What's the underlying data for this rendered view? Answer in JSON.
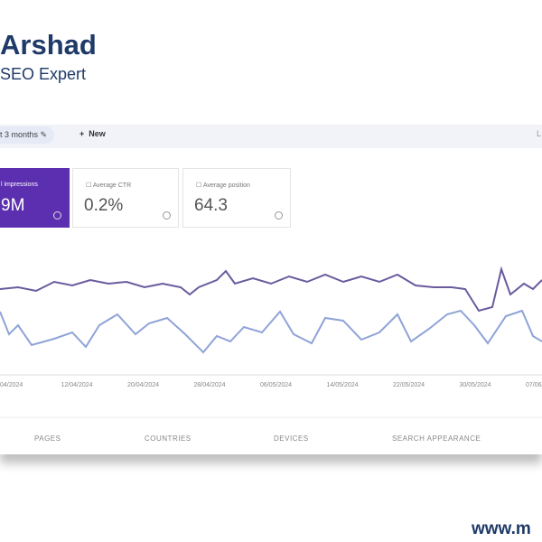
{
  "header": {
    "name": "Arshad",
    "subtitle": "SEO Expert"
  },
  "toolbar": {
    "date_range": "t 3 months",
    "new": "New",
    "edge": "L"
  },
  "metrics": [
    {
      "label": "l impressions",
      "value": "9M"
    },
    {
      "label": "Average CTR",
      "value": "0.2%"
    },
    {
      "label": "Average position",
      "value": "64.3"
    }
  ],
  "chart": {
    "x_labels": [
      "04/2024",
      "12/04/2024",
      "20/04/2024",
      "28/04/2024",
      "06/05/2024",
      "14/05/2024",
      "22/05/2024",
      "30/05/2024",
      "07/06/2"
    ]
  },
  "tabs": [
    "PAGES",
    "COUNTRIES",
    "DEVICES",
    "SEARCH APPEARANCE"
  ],
  "footer": {
    "url": "www.m"
  }
}
